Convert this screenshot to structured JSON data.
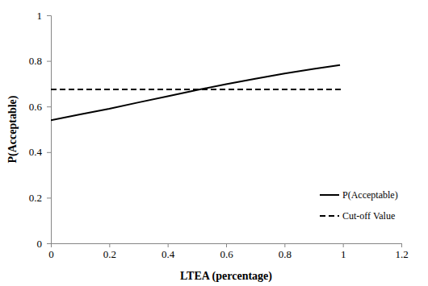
{
  "chart_data": {
    "type": "line",
    "x_label": "LTEA (percentage)",
    "y_label": "P(Acceptable)",
    "series": [
      {
        "name": "P(Acceptable)",
        "color": "#000000",
        "line_style": "solid",
        "x": [
          0,
          0.1,
          0.2,
          0.3,
          0.4,
          0.5,
          0.6,
          0.7,
          0.8,
          0.9,
          0.99
        ],
        "values": [
          0.54,
          0.565,
          0.59,
          0.618,
          0.645,
          0.672,
          0.698,
          0.722,
          0.745,
          0.765,
          0.782
        ]
      },
      {
        "name": "Cut-off Value",
        "color": "#000000",
        "line_style": "dashed",
        "x": [
          0,
          1
        ],
        "values": [
          0.675,
          0.675
        ]
      }
    ],
    "xlim": [
      0,
      1.2
    ],
    "xticks": [
      0,
      0.2,
      0.4,
      0.6,
      0.8,
      1,
      1.2
    ],
    "ylim": [
      0,
      1
    ],
    "yticks": [
      0,
      0.2,
      0.4,
      0.6,
      0.8,
      1
    ],
    "grid": false,
    "legend": "right"
  }
}
